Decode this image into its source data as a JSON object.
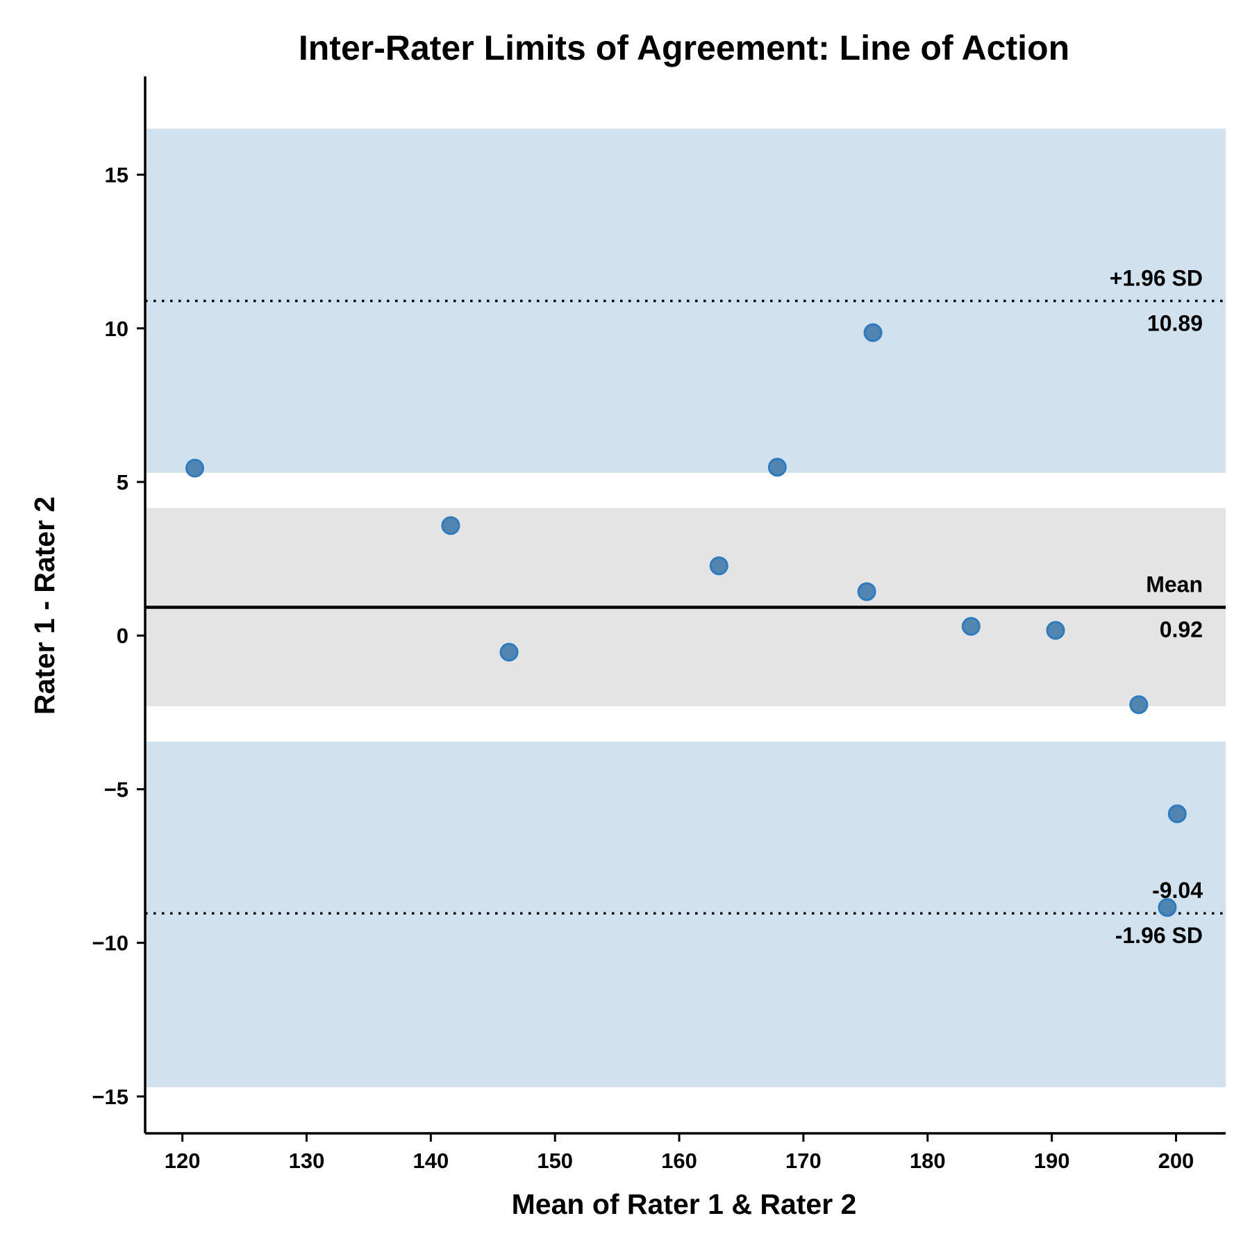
{
  "chart_data": {
    "type": "scatter",
    "title": "Inter-Rater Limits of Agreement: Line of Action",
    "xlabel": "Mean of Rater 1 & Rater 2",
    "ylabel": "Rater 1 - Rater 2",
    "xlim": [
      117,
      204
    ],
    "ylim": [
      -16.2,
      18.2
    ],
    "xticks": [
      120,
      130,
      140,
      150,
      160,
      170,
      180,
      190,
      200
    ],
    "yticks": [
      -15,
      -10,
      -5,
      0,
      5,
      10,
      15
    ],
    "xtick_labels": [
      "120",
      "130",
      "140",
      "150",
      "160",
      "170",
      "180",
      "190",
      "200"
    ],
    "ytick_labels": [
      "−15",
      "−10",
      "−5",
      "0",
      "5",
      "10",
      "15"
    ],
    "grid": false,
    "points": [
      {
        "x": 121.0,
        "y": 5.45
      },
      {
        "x": 141.6,
        "y": 3.58
      },
      {
        "x": 146.3,
        "y": -0.54
      },
      {
        "x": 163.2,
        "y": 2.27
      },
      {
        "x": 167.9,
        "y": 5.48
      },
      {
        "x": 175.1,
        "y": 1.43
      },
      {
        "x": 175.6,
        "y": 9.86
      },
      {
        "x": 183.5,
        "y": 0.3
      },
      {
        "x": 190.3,
        "y": 0.17
      },
      {
        "x": 197.0,
        "y": -2.25
      },
      {
        "x": 200.1,
        "y": -5.8
      },
      {
        "x": 199.3,
        "y": -8.85
      }
    ],
    "mean_line": {
      "value": 0.92,
      "label": "Mean",
      "value_label": "0.92"
    },
    "upper_loa": {
      "value": 10.89,
      "label": "+1.96 SD",
      "value_label": "10.89"
    },
    "lower_loa": {
      "value": -9.04,
      "label": "-1.96 SD",
      "value_label": "-9.04"
    },
    "bands": [
      {
        "name": "upper_ci",
        "from": 5.3,
        "to": 16.5,
        "color": "#d1e2ee"
      },
      {
        "name": "mean_ci",
        "from": -2.3,
        "to": 4.15,
        "color": "#e4e4e4"
      },
      {
        "name": "lower_ci",
        "from": -14.7,
        "to": -3.45,
        "color": "#d1e2ee"
      }
    ],
    "colors": {
      "point_fill": "#4a80ad",
      "point_edge": "#2e7bbf",
      "line": "#000000"
    }
  }
}
